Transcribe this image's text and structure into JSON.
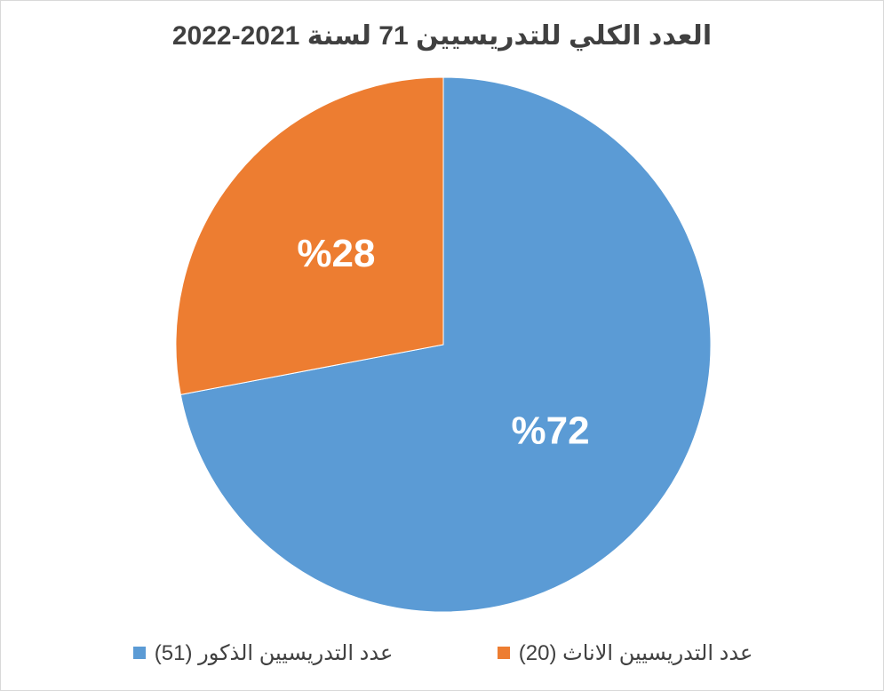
{
  "chart_data": {
    "type": "pie",
    "title": "العدد الكلي للتدريسيين 71 لسنة 2021-2022",
    "categories": [
      "عدد التدريسيين الذكور (51)",
      "عدد التدريسيين الاناث (20)"
    ],
    "values": [
      72,
      28
    ],
    "value_labels": [
      "%72",
      "%28"
    ],
    "colors": [
      "#5b9bd5",
      "#ed7d31"
    ],
    "legend": "bottom"
  }
}
